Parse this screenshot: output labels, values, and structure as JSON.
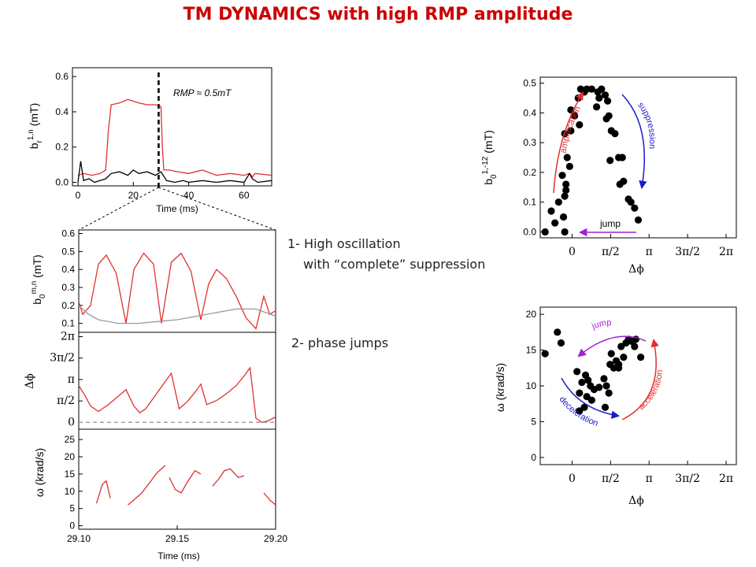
{
  "title": "TM DYNAMICS with high RMP amplitude",
  "notes": {
    "n1_line1": "1- High oscillation",
    "n1_line2": "with “complete” suppression",
    "n2": "2- phase jumps"
  },
  "colors": {
    "red": "#e03030",
    "gray": "#999999",
    "black": "#000000",
    "blue": "#1a1acc",
    "purple": "#a020d0",
    "title_red": "#cc0000"
  },
  "chart_data": [
    {
      "id": "br",
      "type": "line",
      "ylabel_main": "b",
      "ylabel_sub": "r",
      "ylabel_sup": "1,n",
      "ylabel_unit": " (mT)",
      "xlabel": "Time (ms)",
      "xlim": [
        -2,
        70
      ],
      "ylim": [
        -0.02,
        0.65
      ],
      "xticks": [
        "0",
        "20",
        "40",
        "60"
      ],
      "xtick_values": [
        0,
        20,
        40,
        60
      ],
      "yticks": [
        "0.0",
        "0.2",
        "0.4",
        "0.6"
      ],
      "ytick_values": [
        0,
        0.2,
        0.4,
        0.6
      ],
      "annotation": "RMP ≈ 0.5mT",
      "marker_x": 29.15,
      "series": [
        {
          "color": "red",
          "x": [
            0,
            2,
            5,
            8,
            10,
            11,
            12,
            15,
            18,
            20,
            22,
            25,
            28,
            30,
            30.5,
            31,
            33,
            36,
            40,
            45,
            50,
            55,
            60,
            62,
            63,
            64,
            70
          ],
          "y": [
            0.04,
            0.05,
            0.04,
            0.05,
            0.07,
            0.3,
            0.44,
            0.45,
            0.47,
            0.46,
            0.45,
            0.44,
            0.44,
            0.43,
            0.2,
            0.07,
            0.07,
            0.06,
            0.05,
            0.07,
            0.04,
            0.05,
            0.04,
            0.05,
            0.03,
            0.05,
            0.04
          ]
        },
        {
          "color": "black",
          "x": [
            0,
            1,
            2,
            4,
            6,
            8,
            10,
            12,
            15,
            18,
            20,
            22,
            25,
            28,
            30,
            32,
            35,
            38,
            40,
            45,
            50,
            55,
            60,
            62,
            63,
            65,
            70
          ],
          "y": [
            0.0,
            0.12,
            0.01,
            0.02,
            0.0,
            0.01,
            0.02,
            0.05,
            0.06,
            0.04,
            0.07,
            0.05,
            0.06,
            0.04,
            0.06,
            0.01,
            0.0,
            0.01,
            0.0,
            0.01,
            0.0,
            0.01,
            0.0,
            0.05,
            0.02,
            0.0,
            0.01
          ]
        }
      ]
    },
    {
      "id": "b0",
      "type": "line",
      "ylabel_main": "b",
      "ylabel_sub": "0",
      "ylabel_sup": "m,n",
      "ylabel_unit": " (mT)",
      "xlim": [
        29.1,
        29.2
      ],
      "ylim": [
        0.05,
        0.62
      ],
      "yticks": [
        "0.1",
        "0.2",
        "0.3",
        "0.4",
        "0.5",
        "0.6"
      ],
      "ytick_values": [
        0.1,
        0.2,
        0.3,
        0.4,
        0.5,
        0.6
      ],
      "series": [
        {
          "color": "red",
          "x": [
            29.1,
            29.102,
            29.106,
            29.11,
            29.114,
            29.119,
            29.124,
            29.128,
            29.133,
            29.138,
            29.142,
            29.147,
            29.152,
            29.157,
            29.162,
            29.166,
            29.17,
            29.175,
            29.18,
            29.185,
            29.19,
            29.194,
            29.197,
            29.2
          ],
          "y": [
            0.22,
            0.15,
            0.2,
            0.43,
            0.48,
            0.38,
            0.1,
            0.4,
            0.49,
            0.43,
            0.1,
            0.44,
            0.49,
            0.39,
            0.12,
            0.32,
            0.4,
            0.35,
            0.25,
            0.13,
            0.07,
            0.25,
            0.15,
            0.17
          ]
        },
        {
          "color": "gray",
          "x": [
            29.1,
            29.105,
            29.11,
            29.12,
            29.13,
            29.14,
            29.15,
            29.16,
            29.17,
            29.18,
            29.19,
            29.2
          ],
          "y": [
            0.2,
            0.15,
            0.12,
            0.1,
            0.1,
            0.11,
            0.12,
            0.14,
            0.16,
            0.18,
            0.18,
            0.14
          ]
        }
      ]
    },
    {
      "id": "phase",
      "type": "line",
      "ylabel": "Δϕ",
      "xlim": [
        29.1,
        29.2
      ],
      "ylim": [
        -0.5,
        6.6
      ],
      "yticks": [
        "0",
        "π/2",
        "π",
        "3π/2",
        "2π"
      ],
      "ytick_values": [
        0,
        1.5708,
        3.1416,
        4.7124,
        6.2832
      ],
      "series": [
        {
          "color": "red",
          "x": [
            29.1,
            29.103,
            29.106,
            29.11,
            29.115,
            29.12,
            29.124,
            29.128,
            29.131,
            29.134,
            29.138,
            29.143,
            29.147,
            29.151,
            29.155,
            29.159,
            29.162,
            29.165,
            29.17,
            29.175,
            29.18,
            29.184,
            29.187,
            29.19,
            29.193,
            29.196,
            29.2
          ],
          "y": [
            2.7,
            2.0,
            1.2,
            0.8,
            1.3,
            1.9,
            2.4,
            1.2,
            0.7,
            1.0,
            1.8,
            2.8,
            3.6,
            1.0,
            1.5,
            2.2,
            2.8,
            1.3,
            1.6,
            2.1,
            2.7,
            3.4,
            4.0,
            0.3,
            0.0,
            0.1,
            0.4
          ]
        },
        {
          "color": "gray",
          "dashed": true,
          "x": [
            29.1,
            29.2
          ],
          "y": [
            0,
            0
          ]
        }
      ]
    },
    {
      "id": "omega",
      "type": "line",
      "ylabel": "ω (krad/s)",
      "xlabel": "Time (ms)",
      "xlim": [
        29.1,
        29.2
      ],
      "ylim": [
        -1,
        28
      ],
      "xticks": [
        "29.10",
        "29.15",
        "29.20"
      ],
      "xtick_values": [
        29.1,
        29.15,
        29.2
      ],
      "yticks": [
        "0",
        "5",
        "10",
        "15",
        "20",
        "25"
      ],
      "ytick_values": [
        0,
        5,
        10,
        15,
        20,
        25
      ],
      "series": [
        {
          "color": "red",
          "segments": [
            {
              "x": [
                29.109,
                29.112,
                29.114,
                29.116
              ],
              "y": [
                6.5,
                12,
                13,
                8
              ]
            },
            {
              "x": [
                29.125,
                29.128,
                29.132,
                29.136,
                29.14,
                29.144
              ],
              "y": [
                6,
                7.5,
                9.5,
                12.5,
                15.5,
                17.5
              ]
            },
            {
              "x": [
                29.146,
                29.149,
                29.152,
                29.155,
                29.159,
                29.162
              ],
              "y": [
                14,
                10.5,
                9.5,
                12.5,
                16,
                15
              ]
            },
            {
              "x": [
                29.168,
                29.171,
                29.174,
                29.177,
                29.181,
                29.184
              ],
              "y": [
                11.5,
                13.5,
                16,
                16.5,
                14,
                14.5
              ]
            },
            {
              "x": [
                29.194,
                29.197,
                29.2
              ],
              "y": [
                9.5,
                7.5,
                6
              ]
            }
          ]
        }
      ]
    },
    {
      "id": "b0_phase",
      "type": "scatter",
      "ylabel_main": "b",
      "ylabel_sub": "0",
      "ylabel_sup": "1,-12",
      "ylabel_unit": " (mT)",
      "xlabel": "Δϕ",
      "xlim": [
        -1.3,
        6.7
      ],
      "ylim": [
        -0.02,
        0.52
      ],
      "xticks": [
        "0",
        "π/2",
        "π",
        "3π/2",
        "2π"
      ],
      "xtick_values": [
        0,
        1.5708,
        3.1416,
        4.7124,
        6.2832
      ],
      "yticks": [
        "0.0",
        "0.1",
        "0.2",
        "0.3",
        "0.4",
        "0.5"
      ],
      "ytick_values": [
        0,
        0.1,
        0.2,
        0.3,
        0.4,
        0.5
      ],
      "annotations": {
        "up": "amplification",
        "down": "suppression",
        "jump": "jump"
      },
      "points": [
        [
          -1.1,
          0.0
        ],
        [
          -0.3,
          0.0
        ],
        [
          -0.85,
          0.07
        ],
        [
          -0.7,
          0.03
        ],
        [
          -0.55,
          0.1
        ],
        [
          -0.35,
          0.05
        ],
        [
          -0.3,
          0.12
        ],
        [
          -0.25,
          0.14
        ],
        [
          -0.25,
          0.16
        ],
        [
          -0.4,
          0.19
        ],
        [
          -0.1,
          0.22
        ],
        [
          -0.2,
          0.25
        ],
        [
          -0.3,
          0.33
        ],
        [
          -0.05,
          0.34
        ],
        [
          0.1,
          0.39
        ],
        [
          -0.05,
          0.41
        ],
        [
          0.3,
          0.36
        ],
        [
          0.25,
          0.45
        ],
        [
          0.6,
          0.48
        ],
        [
          0.5,
          0.47
        ],
        [
          0.8,
          0.48
        ],
        [
          0.35,
          0.48
        ],
        [
          1.05,
          0.47
        ],
        [
          1.2,
          0.48
        ],
        [
          1.35,
          0.46
        ],
        [
          1.45,
          0.44
        ],
        [
          1.1,
          0.45
        ],
        [
          1.0,
          0.42
        ],
        [
          1.5,
          0.39
        ],
        [
          1.4,
          0.38
        ],
        [
          1.6,
          0.34
        ],
        [
          1.75,
          0.33
        ],
        [
          1.9,
          0.25
        ],
        [
          2.05,
          0.25
        ],
        [
          1.95,
          0.16
        ],
        [
          2.1,
          0.17
        ],
        [
          2.3,
          0.11
        ],
        [
          2.4,
          0.1
        ],
        [
          2.55,
          0.08
        ],
        [
          2.7,
          0.04
        ],
        [
          1.55,
          0.24
        ]
      ]
    },
    {
      "id": "omega_phase",
      "type": "scatter",
      "ylabel": "ω (krad/s)",
      "xlabel": "Δϕ",
      "xlim": [
        -1.3,
        6.7
      ],
      "ylim": [
        -1,
        21
      ],
      "xticks": [
        "0",
        "π/2",
        "π",
        "3π/2",
        "2π"
      ],
      "xtick_values": [
        0,
        1.5708,
        3.1416,
        4.7124,
        6.2832
      ],
      "yticks": [
        "0",
        "5",
        "10",
        "15",
        "20"
      ],
      "ytick_values": [
        0,
        5,
        10,
        15,
        20
      ],
      "annotations": {
        "jump": "jump",
        "down": "deceleration",
        "up": "acceleration"
      },
      "points": [
        [
          -1.1,
          14.5
        ],
        [
          -0.6,
          17.5
        ],
        [
          -0.45,
          16
        ],
        [
          0.2,
          12
        ],
        [
          0.3,
          9
        ],
        [
          0.4,
          10.5
        ],
        [
          0.55,
          11.5
        ],
        [
          0.65,
          10.8
        ],
        [
          0.75,
          10
        ],
        [
          0.6,
          8.5
        ],
        [
          0.8,
          8
        ],
        [
          0.9,
          9.5
        ],
        [
          0.5,
          7
        ],
        [
          0.3,
          6.5
        ],
        [
          1.1,
          9.8
        ],
        [
          1.3,
          11
        ],
        [
          1.4,
          10
        ],
        [
          1.5,
          9
        ],
        [
          1.55,
          13
        ],
        [
          1.6,
          14.5
        ],
        [
          1.7,
          12.5
        ],
        [
          1.8,
          13.5
        ],
        [
          1.9,
          12.5
        ],
        [
          2.0,
          15.5
        ],
        [
          2.1,
          14
        ],
        [
          2.2,
          16
        ],
        [
          2.3,
          16.5
        ],
        [
          2.45,
          16.2
        ],
        [
          2.55,
          15.5
        ],
        [
          2.6,
          16.5
        ],
        [
          1.35,
          7
        ],
        [
          2.8,
          14
        ],
        [
          1.9,
          13
        ]
      ]
    }
  ]
}
